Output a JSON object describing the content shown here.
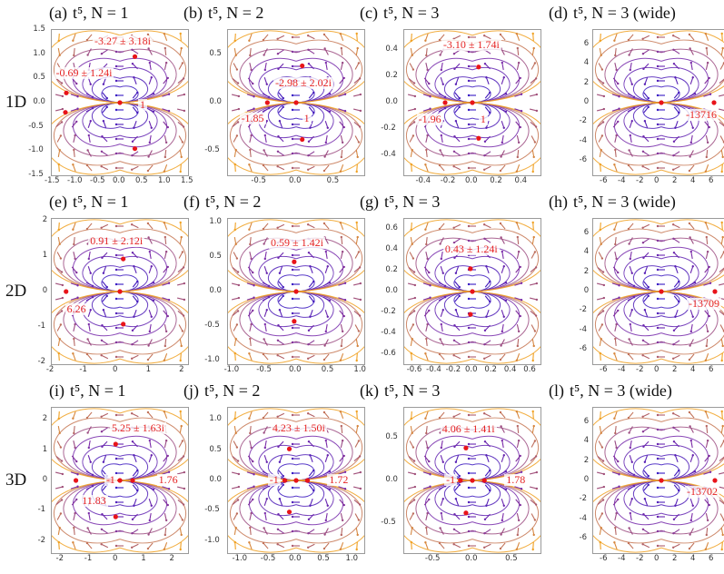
{
  "rows": [
    "1D",
    "2D",
    "3D"
  ],
  "colors": {
    "stream_inner": "#2a16c8",
    "stream_mid": "#7a2aa8",
    "stream_outer": "#f0a020",
    "point": "#e8141a",
    "label": "#e52222"
  },
  "panels": [
    {
      "letter": "(a)",
      "title": "t⁵, N = 1",
      "xticks": [
        "-1.5",
        "-1.0",
        "-0.5",
        "0.0",
        "0.5",
        "1.0",
        "1.5"
      ],
      "yticks": [
        "1.5",
        "1.0",
        "0.5",
        "0.0",
        "-0.5",
        "-1.0",
        "-1.5"
      ],
      "range": [
        -1.5,
        1.5,
        -1.5,
        1.5
      ],
      "points": [
        {
          "x": 0,
          "y": 0
        },
        {
          "x": -1.18,
          "y": 0.2
        },
        {
          "x": -1.2,
          "y": -0.2
        },
        {
          "x": 0.33,
          "y": 0.95
        },
        {
          "x": 0.33,
          "y": -0.95
        }
      ],
      "labels": [
        {
          "text": "-3.27 ± 3.18i",
          "x": -0.6,
          "y": 1.25
        },
        {
          "text": "-0.69 ± 1.24i",
          "x": -1.45,
          "y": 0.6
        },
        {
          "text": "1",
          "x": 0.4,
          "y": -0.05
        }
      ]
    },
    {
      "letter": "(b)",
      "title": "t⁵, N = 2",
      "xticks": [
        "-0.5",
        "0.0",
        "0.5"
      ],
      "yticks": [
        "0.5",
        "0.0",
        "-0.5"
      ],
      "range": [
        -0.9,
        0.9,
        -0.75,
        0.75
      ],
      "points": [
        {
          "x": 0,
          "y": 0
        },
        {
          "x": -0.38,
          "y": 0
        },
        {
          "x": 0.08,
          "y": 0.38
        },
        {
          "x": 0.08,
          "y": -0.38
        }
      ],
      "labels": [
        {
          "text": "-2.98 ± 2.02i",
          "x": -0.3,
          "y": 0.2
        },
        {
          "text": "-1.85",
          "x": -0.75,
          "y": -0.17
        },
        {
          "text": "1",
          "x": 0.08,
          "y": -0.17
        }
      ]
    },
    {
      "letter": "(c)",
      "title": "t⁵, N = 3",
      "xticks": [
        "-0.4",
        "-0.2",
        "0.0",
        "0.2",
        "0.4"
      ],
      "yticks": [
        "0.4",
        "0.2",
        "0.0",
        "-0.2",
        "-0.4"
      ],
      "range": [
        -0.55,
        0.55,
        -0.55,
        0.55
      ],
      "points": [
        {
          "x": 0,
          "y": 0
        },
        {
          "x": -0.22,
          "y": 0
        },
        {
          "x": 0.05,
          "y": 0.27
        },
        {
          "x": 0.05,
          "y": -0.27
        }
      ],
      "labels": [
        {
          "text": "-3.10 ± 1.74i",
          "x": -0.25,
          "y": 0.43
        },
        {
          "text": "-1.96",
          "x": -0.45,
          "y": -0.13
        },
        {
          "text": "1",
          "x": 0.05,
          "y": -0.13
        }
      ]
    },
    {
      "letter": "(d)",
      "title": "t⁵, N = 3 (wide)",
      "xticks": [
        "-6",
        "-4",
        "-2",
        "0",
        "2",
        "4",
        "6"
      ],
      "yticks": [
        "6",
        "4",
        "2",
        "0",
        "-2",
        "-4",
        "-6"
      ],
      "range": [
        -7.5,
        7.5,
        -7.5,
        7.5
      ],
      "points": [
        {
          "x": 0,
          "y": 0
        },
        {
          "x": 5.8,
          "y": 0
        }
      ],
      "labels": [
        {
          "text": "-13716",
          "x": 2.5,
          "y": -1.3
        }
      ]
    },
    {
      "letter": "(e)",
      "title": "t⁵, N = 1",
      "xticks": [
        "-2",
        "-1",
        "0",
        "1",
        "2"
      ],
      "yticks": [
        "2",
        "1",
        "0",
        "-1",
        "-2"
      ],
      "range": [
        -2.05,
        2.05,
        -2.05,
        2.05
      ],
      "points": [
        {
          "x": 0,
          "y": 0
        },
        {
          "x": -1.62,
          "y": 0
        },
        {
          "x": 0.1,
          "y": 0.92
        },
        {
          "x": 0.1,
          "y": -0.92
        }
      ],
      "labels": [
        {
          "text": "0.91 ± 2.12i",
          "x": -0.95,
          "y": 1.4
        },
        {
          "text": "6.26",
          "x": -1.65,
          "y": -0.5
        }
      ]
    },
    {
      "letter": "(f)",
      "title": "t⁵, N = 2",
      "xticks": [
        "-1.0",
        "-0.5",
        "0.0",
        "0.5",
        "1.0"
      ],
      "yticks": [
        "1.0",
        "0.5",
        "0.0",
        "-0.5",
        "-1.0"
      ],
      "range": [
        -1.05,
        1.05,
        -1.05,
        1.05
      ],
      "points": [
        {
          "x": 0,
          "y": 0
        },
        {
          "x": -0.03,
          "y": 0.43
        },
        {
          "x": -0.03,
          "y": -0.43
        }
      ],
      "labels": [
        {
          "text": "0.59 ± 1.42i",
          "x": -0.42,
          "y": 0.7
        }
      ]
    },
    {
      "letter": "(g)",
      "title": "t⁵, N = 3",
      "xticks": [
        "-0.6",
        "-0.4",
        "-0.2",
        "0.0",
        "0.2",
        "0.4",
        "0.6"
      ],
      "yticks": [
        "0.6",
        "0.4",
        "0.2",
        "0.0",
        "-0.2",
        "-0.4",
        "-0.6"
      ],
      "range": [
        -0.7,
        0.7,
        -0.7,
        0.7
      ],
      "points": [
        {
          "x": 0,
          "y": 0
        },
        {
          "x": -0.02,
          "y": 0.22
        },
        {
          "x": -0.02,
          "y": -0.22
        }
      ],
      "labels": [
        {
          "text": "0.43 ± 1.24i",
          "x": -0.3,
          "y": 0.4
        }
      ]
    },
    {
      "letter": "(h)",
      "title": "t⁵, N = 3 (wide)",
      "xticks": [
        "-6",
        "-4",
        "-2",
        "0",
        "2",
        "4",
        "6"
      ],
      "yticks": [
        "6",
        "4",
        "2",
        "0",
        "-2",
        "-4",
        "-6"
      ],
      "range": [
        -7.5,
        7.5,
        -7.5,
        7.5
      ],
      "points": [
        {
          "x": 0,
          "y": 0
        },
        {
          "x": 5.9,
          "y": 0
        }
      ],
      "labels": [
        {
          "text": "-13709",
          "x": 2.8,
          "y": -1.3
        }
      ]
    },
    {
      "letter": "(i)",
      "title": "t⁵, N = 1",
      "xticks": [
        "-2",
        "-1",
        "0",
        "1",
        "2"
      ],
      "yticks": [
        "2",
        "1",
        "0",
        "-1",
        "-2"
      ],
      "range": [
        -2.4,
        2.4,
        -2.4,
        2.4
      ],
      "points": [
        {
          "x": 0,
          "y": 0
        },
        {
          "x": -1.55,
          "y": 0
        },
        {
          "x": -0.35,
          "y": 0
        },
        {
          "x": 0.45,
          "y": 0
        },
        {
          "x": -0.15,
          "y": 1.2
        },
        {
          "x": -0.15,
          "y": -1.2
        }
      ],
      "labels": [
        {
          "text": "5.25 ± 1.63i",
          "x": -0.35,
          "y": 1.7
        },
        {
          "text": "-1",
          "x": -0.55,
          "y": 0
        },
        {
          "text": "1.76",
          "x": 1.3,
          "y": 0
        },
        {
          "text": "11.83",
          "x": -1.4,
          "y": -0.7
        }
      ]
    },
    {
      "letter": "(j)",
      "title": "t⁵, N = 2",
      "xticks": [
        "-1.0",
        "-0.5",
        "0.0",
        "0.5",
        "1.0"
      ],
      "yticks": [
        "1.0",
        "0.5",
        "0.0",
        "-0.5",
        "-1.0"
      ],
      "range": [
        -1.2,
        1.2,
        -1.2,
        1.2
      ],
      "points": [
        {
          "x": 0,
          "y": 0
        },
        {
          "x": -0.2,
          "y": 0
        },
        {
          "x": 0.2,
          "y": 0
        },
        {
          "x": -0.12,
          "y": 0.52
        },
        {
          "x": -0.12,
          "y": -0.52
        }
      ],
      "labels": [
        {
          "text": "4.23 ± 1.50i",
          "x": -0.45,
          "y": 0.85
        },
        {
          "text": "-1",
          "x": -0.5,
          "y": 0
        },
        {
          "text": "1.72",
          "x": 0.55,
          "y": 0
        }
      ]
    },
    {
      "letter": "(k)",
      "title": "t⁵, N = 3",
      "xticks": [
        "-0.5",
        "0.0",
        "0.5"
      ],
      "yticks": [
        "0.5",
        "0.0",
        "-0.5"
      ],
      "range": [
        -0.85,
        0.85,
        -0.85,
        0.85
      ],
      "points": [
        {
          "x": 0,
          "y": 0
        },
        {
          "x": -0.15,
          "y": 0
        },
        {
          "x": 0.15,
          "y": 0
        },
        {
          "x": -0.08,
          "y": 0.38
        },
        {
          "x": -0.08,
          "y": -0.38
        }
      ],
      "labels": [
        {
          "text": "4.06 ± 1.41i",
          "x": -0.4,
          "y": 0.6
        },
        {
          "text": "-1",
          "x": -0.35,
          "y": 0
        },
        {
          "text": "1.78",
          "x": 0.4,
          "y": 0
        }
      ]
    },
    {
      "letter": "(l)",
      "title": "t⁵, N = 3 (wide)",
      "xticks": [
        "-6",
        "-4",
        "-2",
        "0",
        "2",
        "4",
        "6"
      ],
      "yticks": [
        "6",
        "4",
        "2",
        "0",
        "-2",
        "-4",
        "-6"
      ],
      "range": [
        -7.5,
        7.5,
        -7.5,
        7.5
      ],
      "points": [
        {
          "x": 0,
          "y": 0
        },
        {
          "x": 5.9,
          "y": 0
        }
      ],
      "labels": [
        {
          "text": "-13702",
          "x": 2.6,
          "y": -1.2
        }
      ]
    }
  ]
}
